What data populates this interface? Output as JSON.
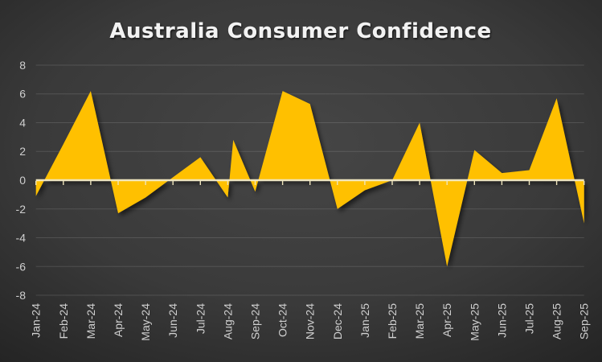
{
  "title": "Australia Consumer Confidence",
  "chart_data": {
    "type": "area",
    "title": "Australia Consumer Confidence",
    "categories": [
      "Jan-24",
      "Feb-24",
      "Mar-24",
      "Apr-24",
      "May-24",
      "Jun-24",
      "Jul-24",
      "Aug-24",
      "Sep-24",
      "Oct-24",
      "Nov-24",
      "Dec-24",
      "Jan-25",
      "Feb-25",
      "Mar-25",
      "Apr-25",
      "May-25",
      "Jun-25",
      "Jul-25",
      "Aug-25",
      "Sep-25"
    ],
    "values": [
      -1.1,
      2.5,
      6.2,
      -2.3,
      -1.2,
      0.2,
      1.6,
      -1.2,
      -0.8,
      6.2,
      5.3,
      -2.0,
      -0.7,
      0.0,
      4.0,
      -6.0,
      2.1,
      0.5,
      0.7,
      5.7,
      -3.0
    ],
    "extra_vertex": {
      "after_category": "Aug-24",
      "slot_fraction": 0.2,
      "value": 2.8
    },
    "xlabel": "",
    "ylabel": "",
    "ylim": [
      -8,
      8
    ],
    "ytick_step": 2,
    "y_axis_labels": [
      "8",
      "6",
      "4",
      "2",
      "0",
      "-2",
      "-4",
      "-6",
      "-8"
    ],
    "grid": true,
    "legend": false,
    "colors": {
      "area": "#FFC000",
      "zero_axis": "#efe5bd",
      "gridline": "rgba(255,255,255,0.13)",
      "axis_label": "#cfcfcf",
      "title": "#f2f2f2",
      "background_center": "#464646",
      "background_edge": "#232323"
    }
  }
}
